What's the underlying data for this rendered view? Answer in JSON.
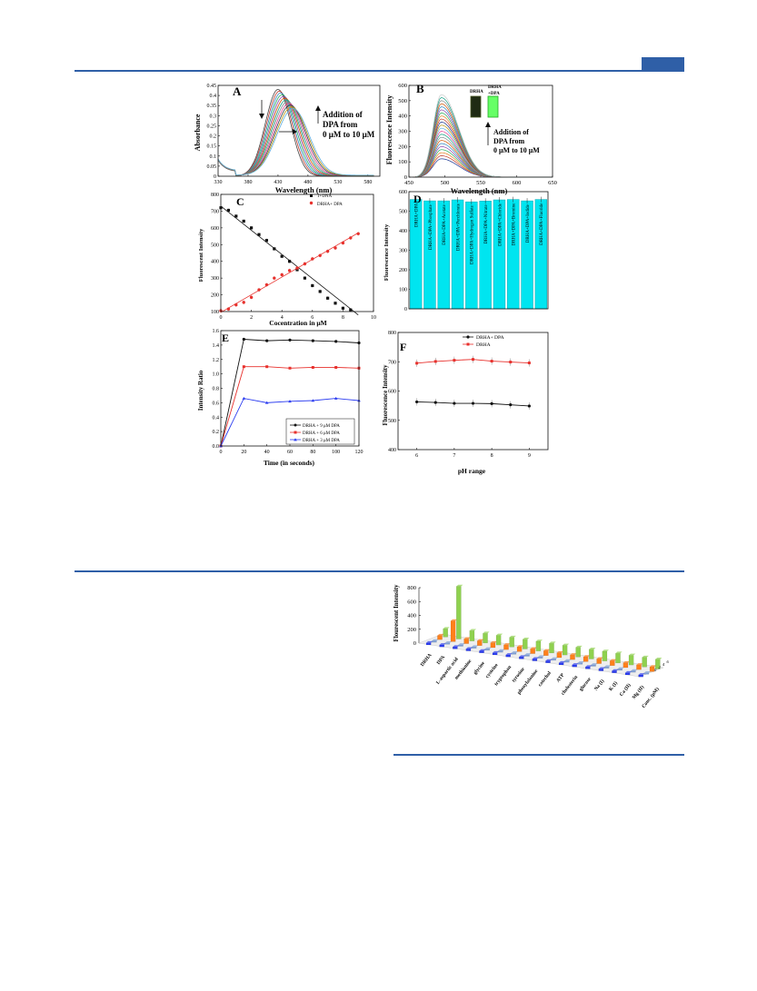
{
  "colors": {
    "accent": "#2f5fa7",
    "cyan": "#00e5f0",
    "red": "#e8312d",
    "black": "#111111",
    "blue": "#2b3cf0"
  },
  "panel_A": {
    "label": "A",
    "ylabel": "Absorbance",
    "xlabel": "Wavelength (nm)",
    "annotation": [
      "Addition of",
      "DPA from",
      "0 μM to 10 μM"
    ],
    "xticks": [
      "330",
      "380",
      "430",
      "480",
      "530",
      "580"
    ],
    "yticks": [
      "0",
      "0.05",
      "0.1",
      "0.15",
      "0.2",
      "0.25",
      "0.3",
      "0.35",
      "0.4",
      "0.45"
    ]
  },
  "panel_B": {
    "label": "B",
    "ylabel": "Fluorescence Intensity",
    "xlabel": "Wavelength (nm)",
    "annotation": [
      "Addition of",
      "DPA from",
      "0 μM to 10 μM"
    ],
    "inset_labels": [
      "DRHA",
      "DRHA",
      "+DPA"
    ],
    "xticks": [
      "450",
      "500",
      "550",
      "600",
      "650"
    ],
    "yticks": [
      "0",
      "100",
      "200",
      "300",
      "400",
      "500",
      "600"
    ]
  },
  "panel_C": {
    "label": "C",
    "ylabel": "Fluorescent Intensity",
    "xlabel": "Cocentration in μM",
    "legend": [
      "1+DNA",
      "DRHA+ DPA"
    ],
    "xticks": [
      "0",
      "2",
      "4",
      "6",
      "8",
      "10"
    ],
    "yticks": [
      "100",
      "200",
      "300",
      "400",
      "500",
      "600",
      "700",
      "800"
    ]
  },
  "panel_D": {
    "label": "D",
    "ylabel": "Fluorescence Intensity",
    "categories": [
      "DRHA+DPA",
      "DRHA+DPA+Phosphate",
      "DRHA+DPA+Acetate",
      "DRHA+DPA+Perchlorate",
      "DRHA+DPA+Hydrogen Sulfate",
      "DRHA+DPA+Nitrate",
      "DRHA+DPA+Chloride",
      "DRHA+DPA+Bromine",
      "DRHA+DPA+Iodide",
      "DRHA+DPA+Fluoride"
    ],
    "yticks": [
      "0",
      "100",
      "200",
      "300",
      "400",
      "500",
      "600"
    ]
  },
  "panel_E": {
    "label": "E",
    "ylabel": "Intensity Ratio",
    "xlabel": "Time (in seconds)",
    "legend": [
      "DRHA + 9 μM DPA",
      "DRHA + 6 μM DPA",
      "DRHA + 3 μM DPA"
    ],
    "xticks": [
      "0",
      "20",
      "40",
      "60",
      "80",
      "100",
      "120"
    ],
    "yticks": [
      "0.0",
      "0.2",
      "0.4",
      "0.6",
      "0.8",
      "1.0",
      "1.2",
      "1.4",
      "1.6"
    ]
  },
  "panel_F": {
    "label": "F",
    "ylabel": "Fluorescence Intensity",
    "xlabel": "pH range",
    "legend": [
      "DRHA+ DPA",
      "DRHA"
    ],
    "xticks": [
      "6",
      "7",
      "8",
      "9"
    ],
    "yticks": [
      "400",
      "500",
      "600",
      "700",
      "800"
    ]
  },
  "panel_G": {
    "ylabel": "Flourescent Intensity",
    "yticks": [
      "0",
      "200",
      "400",
      "600",
      "800"
    ],
    "categories": [
      "DRHA",
      "DPA",
      "L-aspartic acid",
      "methionine",
      "glycine",
      "cysteine",
      "tryptophan",
      "tyrosine",
      "phenylalanine",
      "catechol",
      "ATP",
      "cholesterin",
      "glucose",
      "Na (I)",
      "K (I)",
      "Ca (II)",
      "Mg (II)",
      "Conc. (μM)"
    ],
    "depth_labels": [
      "0",
      "2",
      "4",
      "6"
    ]
  },
  "chart_data": [
    {
      "type": "line",
      "panel": "A",
      "xlabel": "Wavelength (nm)",
      "ylabel": "Absorbance",
      "xlim": [
        330,
        600
      ],
      "ylim": [
        0,
        0.45
      ],
      "series_count": 12,
      "peak_start": {
        "x": 430,
        "y": 0.43
      },
      "peak_end": {
        "x": 455,
        "y": 0.33
      }
    },
    {
      "type": "line",
      "panel": "B",
      "xlabel": "Wavelength (nm)",
      "ylabel": "Fluorescence Intensity",
      "xlim": [
        450,
        650
      ],
      "ylim": [
        0,
        600
      ],
      "series_count": 22,
      "peak_x": 495,
      "peak_min": 120,
      "peak_max": 540
    },
    {
      "type": "scatter",
      "panel": "C",
      "xlabel": "Cocentration in μM",
      "ylabel": "Fluorescent Intensity",
      "xlim": [
        0,
        10
      ],
      "ylim": [
        100,
        800
      ],
      "series": [
        {
          "name": "1+DNA",
          "x": [
            0,
            0.5,
            1,
            1.5,
            2,
            2.5,
            3,
            3.5,
            4,
            4.5,
            5,
            5.5,
            6,
            6.5,
            7,
            7.5,
            8,
            8.5
          ],
          "values": [
            720,
            705,
            670,
            640,
            600,
            560,
            525,
            475,
            430,
            400,
            350,
            300,
            255,
            220,
            180,
            150,
            120,
            110
          ]
        },
        {
          "name": "DRHA+ DPA",
          "x": [
            0,
            0.5,
            1,
            1.5,
            2,
            2.5,
            3,
            3.5,
            4,
            4.5,
            5,
            5.5,
            6,
            6.5,
            7,
            7.5,
            8,
            8.5,
            9
          ],
          "values": [
            105,
            115,
            140,
            155,
            185,
            230,
            260,
            300,
            320,
            345,
            360,
            385,
            415,
            435,
            460,
            480,
            510,
            540,
            565
          ]
        }
      ]
    },
    {
      "type": "bar",
      "panel": "D",
      "ylabel": "Fluorescence Intensity",
      "ylim": [
        0,
        600
      ],
      "categories": [
        "DRHA+DPA",
        "DRHA+DPA+Phosphate",
        "DRHA+DPA+Acetate",
        "DRHA+DPA+Perchlorate",
        "DRHA+DPA+Hydrogen Sulfate",
        "DRHA+DPA+Nitrate",
        "DRHA+DPA+Chloride",
        "DRHA+DPA+Bromine",
        "DRHA+DPA+Iodide",
        "DRHA+DPA+Fluoride"
      ],
      "values": [
        560,
        553,
        553,
        558,
        548,
        552,
        558,
        560,
        553,
        560
      ]
    },
    {
      "type": "line",
      "panel": "E",
      "xlabel": "Time (in seconds)",
      "ylabel": "Intensity Ratio",
      "xlim": [
        0,
        120
      ],
      "ylim": [
        0,
        1.6
      ],
      "x": [
        0,
        20,
        40,
        60,
        80,
        100,
        120
      ],
      "series": [
        {
          "name": "DRHA + 9 μM DPA",
          "values": [
            0,
            1.48,
            1.46,
            1.47,
            1.46,
            1.45,
            1.43
          ]
        },
        {
          "name": "DRHA + 6 μM DPA",
          "values": [
            0,
            1.1,
            1.1,
            1.08,
            1.09,
            1.09,
            1.08
          ]
        },
        {
          "name": "DRHA + 3 μM DPA",
          "values": [
            0,
            0.66,
            0.6,
            0.62,
            0.63,
            0.66,
            0.63
          ]
        }
      ]
    },
    {
      "type": "line",
      "panel": "F",
      "xlabel": "pH range",
      "ylabel": "Fluorescence Intensity",
      "xlim": [
        5.5,
        9.5
      ],
      "ylim": [
        400,
        800
      ],
      "x": [
        6,
        6.5,
        7,
        7.5,
        8,
        8.5,
        9
      ],
      "series": [
        {
          "name": "DRHA+ DPA",
          "values": [
            563,
            561,
            558,
            558,
            557,
            553,
            549
          ]
        },
        {
          "name": "DRHA",
          "values": [
            695,
            701,
            705,
            708,
            702,
            699,
            696
          ]
        }
      ]
    },
    {
      "type": "bar",
      "panel": "G",
      "ylabel": "Flourescent Intensity",
      "ylim": [
        0,
        800
      ],
      "categories": [
        "DRHA",
        "DPA",
        "L-aspartic acid",
        "methionine",
        "glycine",
        "cysteine",
        "tryptophan",
        "tyrosine",
        "phenylalanine",
        "catechol",
        "ATP",
        "cholesterin",
        "glucose",
        "Na (I)",
        "K (I)",
        "Ca (II)",
        "Mg (II)"
      ],
      "series": [
        {
          "name": "0",
          "values": [
            30,
            30,
            30,
            30,
            30,
            30,
            30,
            30,
            30,
            30,
            30,
            30,
            30,
            30,
            30,
            30,
            30
          ]
        },
        {
          "name": "2",
          "values": [
            20,
            20,
            20,
            20,
            20,
            20,
            20,
            20,
            20,
            20,
            20,
            20,
            20,
            20,
            20,
            20,
            20
          ]
        },
        {
          "name": "4",
          "values": [
            60,
            300,
            70,
            70,
            70,
            70,
            70,
            70,
            70,
            70,
            70,
            70,
            70,
            70,
            70,
            70,
            70
          ]
        },
        {
          "name": "6",
          "values": [
            120,
            760,
            150,
            140,
            140,
            140,
            140,
            140,
            140,
            140,
            140,
            140,
            140,
            140,
            140,
            140,
            140
          ]
        }
      ]
    }
  ]
}
